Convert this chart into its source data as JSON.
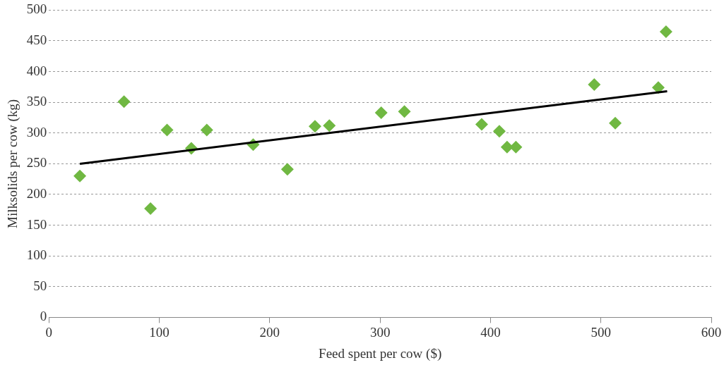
{
  "chart_data": {
    "type": "scatter",
    "xlabel": "Feed spent per cow ($)",
    "ylabel": "Milksolids per cow (kg)",
    "xlim": [
      0,
      600
    ],
    "xticks": [
      0,
      100,
      200,
      300,
      400,
      500,
      600
    ],
    "ylim": [
      0,
      500
    ],
    "yticks": [
      0,
      50,
      100,
      150,
      200,
      250,
      300,
      350,
      400,
      450,
      500
    ],
    "grid": "y",
    "marker": "diamond",
    "legend": false,
    "series": [
      {
        "type": "scatter",
        "color": "#70b842",
        "x": [
          28,
          68,
          92,
          107,
          129,
          143,
          185,
          216,
          241,
          254,
          301,
          322,
          392,
          408,
          415,
          423,
          494,
          513,
          552,
          559
        ],
        "values": [
          230,
          351,
          177,
          305,
          275,
          305,
          281,
          241,
          311,
          312,
          333,
          335,
          314,
          303,
          277,
          277,
          379,
          316,
          374,
          465
        ]
      },
      {
        "type": "line",
        "color": "#000000",
        "marker": "none",
        "x": [
          28,
          560
        ],
        "values": [
          250,
          368
        ]
      }
    ]
  }
}
